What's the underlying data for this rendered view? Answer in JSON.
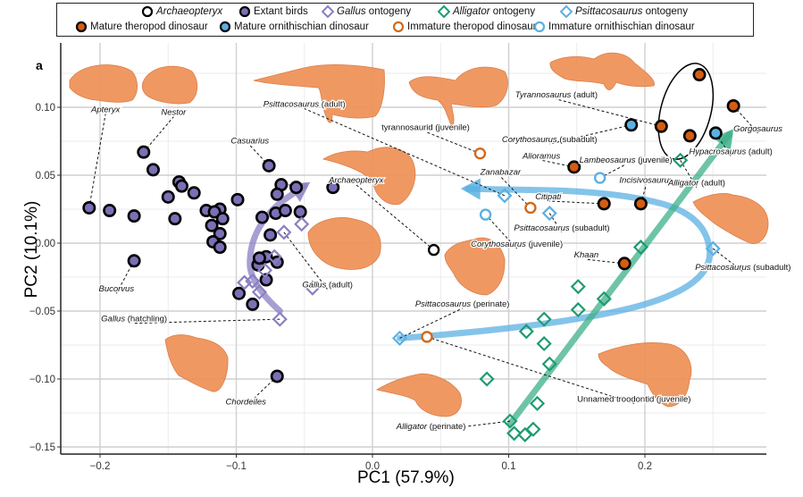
{
  "panel_label": "a",
  "legend": {
    "row1": [
      {
        "label_italic": "Archaeopteryx",
        "label_rest": "",
        "marker": "open-circle",
        "color": "#000000"
      },
      {
        "label_italic": "",
        "label_rest": "Extant birds",
        "marker": "filled-circle",
        "color": "#7b6fb5"
      },
      {
        "label_italic": "Gallus",
        "label_rest": " ontogeny",
        "marker": "open-diamond",
        "color": "#8a7fc2"
      },
      {
        "label_italic": "Alligator",
        "label_rest": " ontogeny",
        "marker": "open-diamond",
        "color": "#1e9b72"
      },
      {
        "label_italic": "Psittacosaurus",
        "label_rest": " ontogeny",
        "marker": "open-diamond",
        "color": "#5bb0e3"
      }
    ],
    "row2": [
      {
        "label_italic": "",
        "label_rest": "Mature theropod dinosaur",
        "marker": "filled-circle",
        "color": "#d35d12"
      },
      {
        "label_italic": "",
        "label_rest": "Mature ornithischian dinosaur",
        "marker": "filled-circle",
        "color": "#5bb0e3"
      },
      {
        "label_italic": "",
        "label_rest": "Immature theropod dinosaur",
        "marker": "open-circle",
        "color": "#d36a1b"
      },
      {
        "label_italic": "",
        "label_rest": "Immature ornithischian dinosaur",
        "marker": "open-circle",
        "color": "#5bb0e3"
      }
    ]
  },
  "chart_data": {
    "type": "scatter",
    "title": "",
    "xlabel": "PC1 (57.9%)",
    "ylabel": "PC2 (10.1%)",
    "xlim": [
      -0.23,
      0.29
    ],
    "ylim": [
      -0.155,
      0.135
    ],
    "xticks": [
      -0.2,
      -0.1,
      0.0,
      0.1,
      0.2
    ],
    "xtick_labels": [
      "-0.2",
      "-0.1",
      "0.0",
      "0.1",
      "0.2"
    ],
    "yticks": [
      -0.15,
      -0.1,
      -0.05,
      0.0,
      0.05,
      0.1
    ],
    "ytick_labels": [
      "-0.15",
      "-0.10",
      "-0.05",
      "0.00",
      "0.05",
      "0.10"
    ],
    "grid": true,
    "legend_position": "top",
    "colors": {
      "extant_birds": "#7b6fb5",
      "gallus": "#8a7fc2",
      "alligator": "#1e9b72",
      "psittacosaurus": "#5bb0e3",
      "theropod": "#d35d12",
      "ornithischian": "#5bb0e3",
      "archaeopteryx": "#000000",
      "endocast": "#f0935a"
    },
    "series": [
      {
        "name": "Extant birds",
        "marker": "filled-circle",
        "points": [
          [
            -0.208,
            0.026
          ],
          [
            -0.193,
            0.024
          ],
          [
            -0.175,
            0.02
          ],
          [
            -0.168,
            0.067
          ],
          [
            -0.161,
            0.054
          ],
          [
            -0.175,
            -0.013
          ],
          [
            -0.15,
            0.034
          ],
          [
            -0.142,
            0.045
          ],
          [
            -0.14,
            0.042
          ],
          [
            -0.131,
            0.037
          ],
          [
            -0.145,
            0.018
          ],
          [
            -0.122,
            0.024
          ],
          [
            -0.112,
            0.025
          ],
          [
            -0.116,
            0.023
          ],
          [
            -0.11,
            0.018
          ],
          [
            -0.118,
            0.013
          ],
          [
            -0.112,
            0.007
          ],
          [
            -0.117,
            0.001
          ],
          [
            -0.112,
            -0.003
          ],
          [
            -0.099,
            0.032
          ],
          [
            -0.076,
            0.057
          ],
          [
            -0.067,
            0.043
          ],
          [
            -0.07,
            0.036
          ],
          [
            -0.056,
            0.041
          ],
          [
            -0.081,
            0.019
          ],
          [
            -0.071,
            0.022
          ],
          [
            -0.064,
            0.024
          ],
          [
            -0.053,
            0.023
          ],
          [
            -0.029,
            0.041
          ],
          [
            -0.075,
            0.006
          ],
          [
            -0.078,
            -0.01
          ],
          [
            -0.084,
            -0.016
          ],
          [
            -0.083,
            -0.011
          ],
          [
            -0.07,
            -0.014
          ],
          [
            -0.078,
            -0.027
          ],
          [
            -0.098,
            -0.037
          ],
          [
            -0.088,
            -0.045
          ],
          [
            -0.07,
            -0.098
          ]
        ]
      },
      {
        "name": "Archaeopteryx",
        "marker": "open-circle",
        "points": [
          [
            0.045,
            -0.005
          ]
        ]
      },
      {
        "name": "Gallus ontogeny",
        "marker": "open-diamond",
        "points": [
          [
            -0.068,
            -0.056
          ],
          [
            -0.094,
            -0.029
          ],
          [
            -0.083,
            -0.036
          ],
          [
            -0.079,
            -0.02
          ],
          [
            -0.072,
            -0.01
          ],
          [
            -0.065,
            0.008
          ],
          [
            -0.052,
            0.014
          ],
          [
            -0.044,
            -0.033
          ],
          [
            -0.088,
            -0.028
          ]
        ]
      },
      {
        "name": "Alligator ontogeny",
        "marker": "open-diamond",
        "points": [
          [
            0.101,
            -0.131
          ],
          [
            0.104,
            -0.14
          ],
          [
            0.112,
            -0.141
          ],
          [
            0.118,
            -0.137
          ],
          [
            0.121,
            -0.118
          ],
          [
            0.13,
            -0.089
          ],
          [
            0.126,
            -0.074
          ],
          [
            0.126,
            -0.056
          ],
          [
            0.151,
            -0.032
          ],
          [
            0.151,
            -0.049
          ],
          [
            0.17,
            -0.041
          ],
          [
            0.084,
            -0.1
          ],
          [
            0.113,
            -0.065
          ],
          [
            0.197,
            -0.003
          ],
          [
            0.226,
            0.061
          ]
        ]
      },
      {
        "name": "Psittacosaurus ontogeny",
        "marker": "open-diamond",
        "points": [
          [
            0.02,
            -0.07
          ],
          [
            0.097,
            0.035
          ],
          [
            0.13,
            0.022
          ],
          [
            0.25,
            -0.004
          ]
        ]
      },
      {
        "name": "Mature theropod dinosaur",
        "marker": "filled-circle",
        "points": [
          [
            0.24,
            0.124
          ],
          [
            0.212,
            0.086
          ],
          [
            0.233,
            0.079
          ],
          [
            0.265,
            0.101
          ],
          [
            0.148,
            0.056
          ],
          [
            0.17,
            0.029
          ],
          [
            0.197,
            0.029
          ],
          [
            0.185,
            -0.015
          ]
        ]
      },
      {
        "name": "Mature ornithischian dinosaur",
        "marker": "filled-circle",
        "points": [
          [
            0.19,
            0.087
          ],
          [
            0.252,
            0.081
          ]
        ]
      },
      {
        "name": "Immature theropod dinosaur",
        "marker": "open-circle",
        "points": [
          [
            0.079,
            0.066
          ],
          [
            0.116,
            0.026
          ],
          [
            0.04,
            -0.069
          ]
        ]
      },
      {
        "name": "Immature ornithischian dinosaur",
        "marker": "open-circle",
        "points": [
          [
            0.167,
            0.048
          ],
          [
            0.083,
            0.021
          ]
        ]
      }
    ],
    "trajectories": [
      {
        "name": "Gallus ontogeny trajectory",
        "color": "#8a7fc2",
        "path": [
          [
            -0.068,
            -0.05
          ],
          [
            -0.09,
            -0.03
          ],
          [
            -0.09,
            0.0
          ],
          [
            -0.075,
            0.025
          ],
          [
            -0.05,
            0.042
          ]
        ]
      },
      {
        "name": "Psittacosaurus ontogeny trajectory",
        "color": "#5bb0e3",
        "path": [
          [
            0.02,
            -0.07
          ],
          [
            0.15,
            -0.06
          ],
          [
            0.25,
            -0.03
          ],
          [
            0.245,
            0.02
          ],
          [
            0.18,
            0.038
          ],
          [
            0.07,
            0.04
          ]
        ]
      },
      {
        "name": "Alligator ontogeny trajectory",
        "color": "#3db088",
        "path": [
          [
            0.101,
            -0.133
          ],
          [
            0.262,
            0.08
          ]
        ]
      }
    ],
    "annotations": [
      {
        "text_italic": "Apteryx",
        "text_rest": "",
        "point": [
          -0.208,
          0.026
        ],
        "label_at": [
          -0.196,
          0.095
        ]
      },
      {
        "text_italic": "Nestor",
        "text_rest": "",
        "point": [
          -0.168,
          0.067
        ],
        "label_at": [
          -0.146,
          0.093
        ]
      },
      {
        "text_italic": "Casuarius",
        "text_rest": "",
        "point": [
          -0.076,
          0.057
        ],
        "label_at": [
          -0.09,
          0.072
        ]
      },
      {
        "text_italic": "Bucorvus",
        "text_rest": "",
        "point": [
          -0.175,
          -0.013
        ],
        "label_at": [
          -0.188,
          -0.037
        ]
      },
      {
        "text_italic": "Gallus",
        "text_rest": " (hatchling)",
        "point": [
          -0.068,
          -0.056
        ],
        "label_at": [
          -0.175,
          -0.059
        ]
      },
      {
        "text_italic": "Gallus",
        "text_rest": " (adult)",
        "point": [
          -0.065,
          0.008
        ],
        "label_at": [
          -0.033,
          -0.034
        ]
      },
      {
        "text_italic": "Chordeiles",
        "text_rest": "",
        "point": [
          -0.07,
          -0.098
        ],
        "label_at": [
          -0.093,
          -0.12
        ]
      },
      {
        "text_italic": "Psittacosaurus",
        "text_rest": " (adult)",
        "point": [
          0.097,
          0.035
        ],
        "label_at": [
          -0.05,
          0.099
        ]
      },
      {
        "text_italic": "",
        "text_rest": "tyrannosaurid (juvenile)",
        "point": [
          0.079,
          0.066
        ],
        "label_at": [
          0.039,
          0.082
        ]
      },
      {
        "text_italic": "Archaeopteryx",
        "text_rest": "",
        "point": [
          0.045,
          -0.005
        ],
        "label_at": [
          -0.012,
          0.043
        ]
      },
      {
        "text_italic": "Tyrannosaurus",
        "text_rest": " (adult)",
        "point": [
          0.212,
          0.086
        ],
        "label_at": [
          0.135,
          0.106
        ]
      },
      {
        "text_italic": "Gorgosaurus",
        "text_rest": "",
        "point": [
          0.265,
          0.101
        ],
        "label_at": [
          0.283,
          0.081
        ]
      },
      {
        "text_italic": "Corythosaurus",
        "text_rest": " (subadult)",
        "point": [
          0.19,
          0.087
        ],
        "label_at": [
          0.13,
          0.073
        ]
      },
      {
        "text_italic": "Hypacrosaurus",
        "text_rest": " (adult)",
        "point": [
          0.252,
          0.081
        ],
        "label_at": [
          0.263,
          0.064
        ]
      },
      {
        "text_italic": "Alioramus",
        "text_rest": "",
        "point": [
          0.148,
          0.056
        ],
        "label_at": [
          0.124,
          0.061
        ]
      },
      {
        "text_italic": "Lambeosaurus",
        "text_rest": " (juvenile)",
        "point": [
          0.167,
          0.048
        ],
        "label_at": [
          0.186,
          0.058
        ]
      },
      {
        "text_italic": "Zanabazar",
        "text_rest": "",
        "point": [
          0.116,
          0.026
        ],
        "label_at": [
          0.094,
          0.049
        ]
      },
      {
        "text_italic": "Incisivosaurus",
        "text_rest": "",
        "point": [
          0.197,
          0.029
        ],
        "label_at": [
          0.201,
          0.043
        ]
      },
      {
        "text_italic": "Alligator",
        "text_rest": " (adult)",
        "point": [
          0.226,
          0.061
        ],
        "label_at": [
          0.238,
          0.041
        ]
      },
      {
        "text_italic": "Citipati",
        "text_rest": "",
        "point": [
          0.17,
          0.029
        ],
        "label_at": [
          0.129,
          0.031
        ]
      },
      {
        "text_italic": "Psittacosaurus",
        "text_rest": " (subadult)",
        "point": [
          0.13,
          0.022
        ],
        "label_at": [
          0.139,
          0.008
        ]
      },
      {
        "text_italic": "Corythosaurus",
        "text_rest": " (juvenile)",
        "point": [
          0.083,
          0.021
        ],
        "label_at": [
          0.106,
          -0.004
        ]
      },
      {
        "text_italic": "Khaan",
        "text_rest": "",
        "point": [
          0.185,
          -0.015
        ],
        "label_at": [
          0.157,
          -0.012
        ]
      },
      {
        "text_italic": "Psittacosaurus",
        "text_rest": " (subadult)",
        "point": [
          0.25,
          -0.004
        ],
        "label_at": [
          0.272,
          -0.021
        ]
      },
      {
        "text_italic": "Psittacosaurus",
        "text_rest": " (perinate)",
        "point": [
          0.02,
          -0.07
        ],
        "label_at": [
          0.066,
          -0.048
        ]
      },
      {
        "text_italic": "",
        "text_rest": "Unnamed troodontid (juvenile)",
        "point": [
          0.04,
          -0.069
        ],
        "label_at": [
          0.192,
          -0.118
        ]
      },
      {
        "text_italic": "Alligator",
        "text_rest": " (perinate)",
        "point": [
          0.101,
          -0.131
        ],
        "label_at": [
          0.043,
          -0.138
        ]
      }
    ],
    "highlight_ellipse": {
      "center": [
        0.23,
        0.097
      ],
      "note": "encircles Tyrannosaurus and related adult tyrannosaurids"
    }
  }
}
